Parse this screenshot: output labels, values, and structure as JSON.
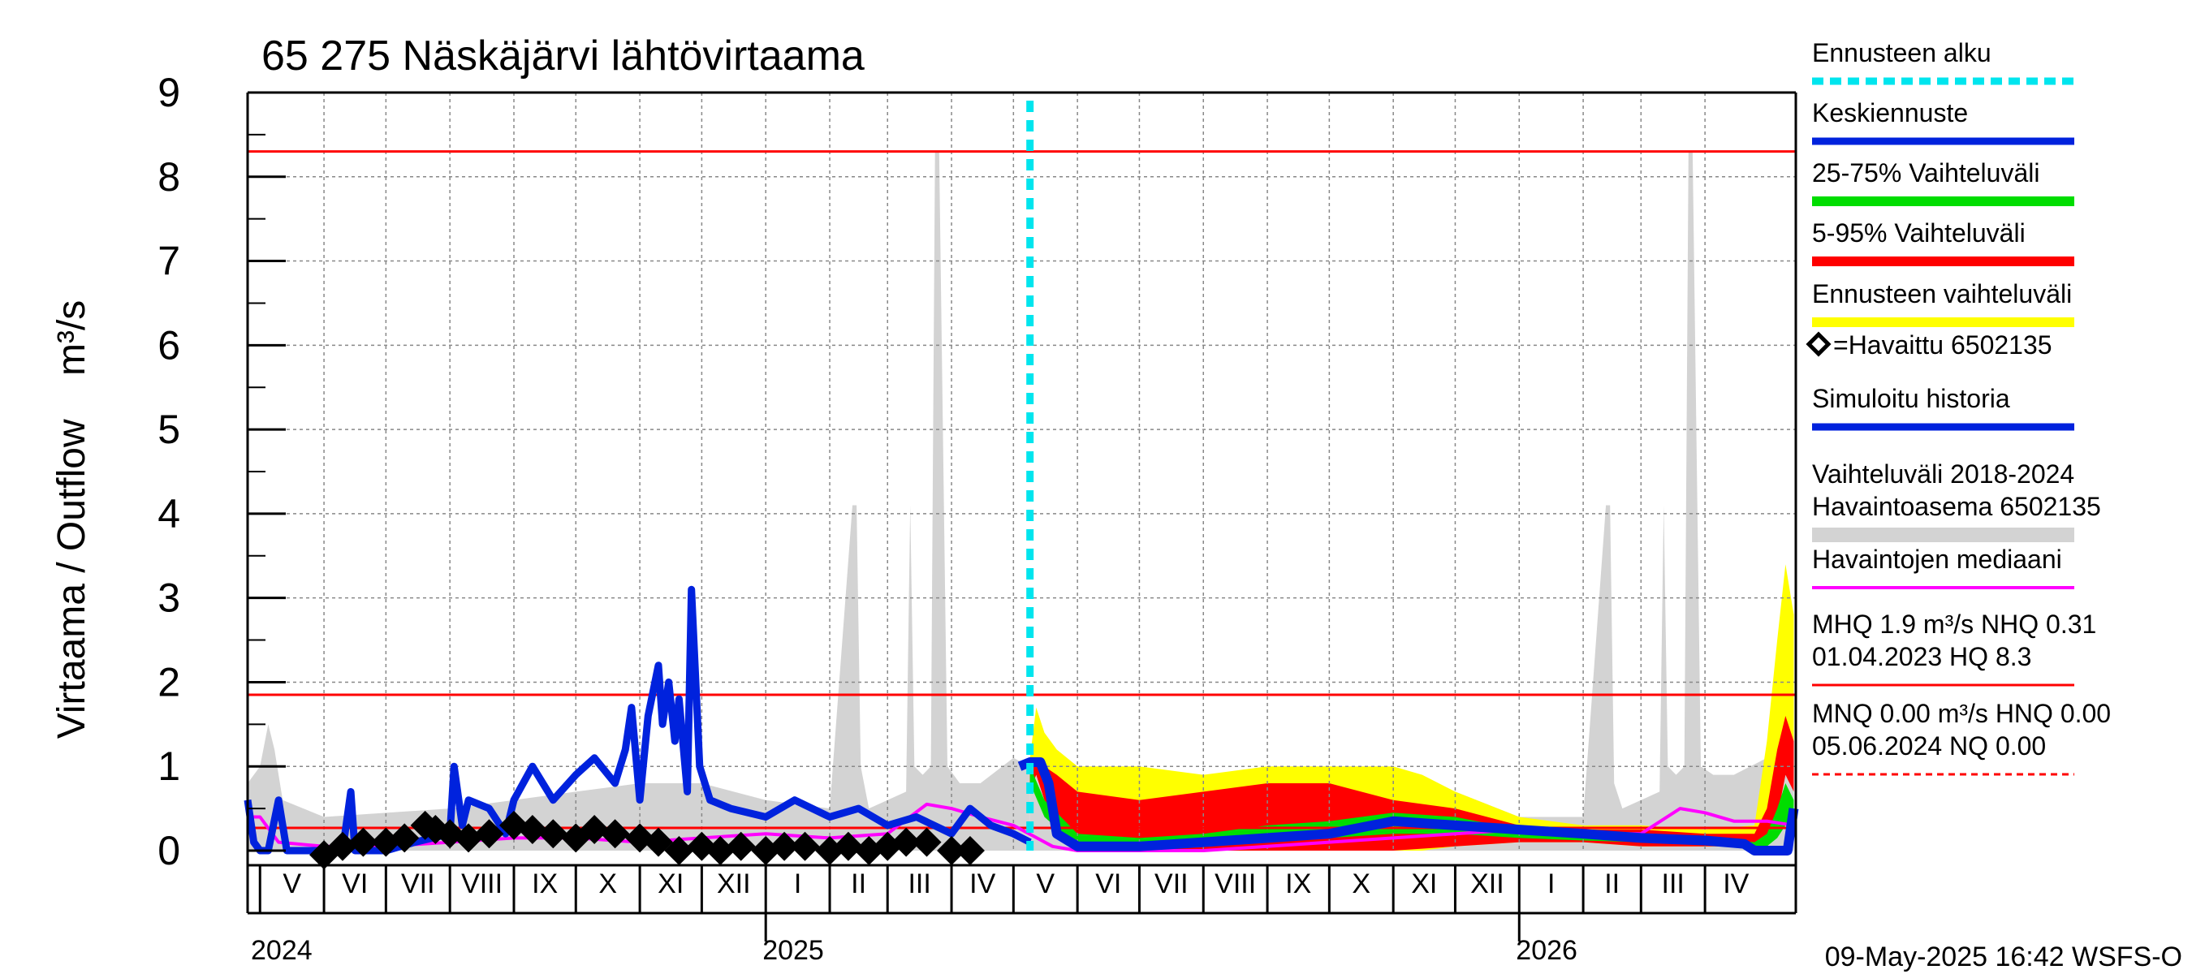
{
  "chart_data": {
    "type": "line",
    "title": "65 275 Näskäjärvi lähtövirtaama",
    "ylabel": "Virtaama / Outflow    m³/s",
    "ylim": [
      0,
      9
    ],
    "yticks": [
      0,
      1,
      2,
      3,
      4,
      5,
      6,
      7,
      8,
      9
    ],
    "xlim": [
      "2024-04-25",
      "2026-05-15"
    ],
    "grid": true,
    "legend_position": "right",
    "timestamp": "09-May-2025 16:42 WSFS-O",
    "forecast_start": "2025-05-09",
    "months": [
      {
        "label": "V",
        "start": "2024-05-01",
        "end": "2024-06-01"
      },
      {
        "label": "VI",
        "start": "2024-06-01",
        "end": "2024-07-01"
      },
      {
        "label": "VII",
        "start": "2024-07-01",
        "end": "2024-08-01"
      },
      {
        "label": "VIII",
        "start": "2024-08-01",
        "end": "2024-09-01"
      },
      {
        "label": "IX",
        "start": "2024-09-01",
        "end": "2024-10-01"
      },
      {
        "label": "X",
        "start": "2024-10-01",
        "end": "2024-11-01"
      },
      {
        "label": "XI",
        "start": "2024-11-01",
        "end": "2024-12-01"
      },
      {
        "label": "XII",
        "start": "2024-12-01",
        "end": "2025-01-01"
      },
      {
        "label": "I",
        "start": "2025-01-01",
        "end": "2025-02-01"
      },
      {
        "label": "II",
        "start": "2025-02-01",
        "end": "2025-03-01"
      },
      {
        "label": "III",
        "start": "2025-03-01",
        "end": "2025-04-01"
      },
      {
        "label": "IV",
        "start": "2025-04-01",
        "end": "2025-05-01"
      },
      {
        "label": "V",
        "start": "2025-05-01",
        "end": "2025-06-01"
      },
      {
        "label": "VI",
        "start": "2025-06-01",
        "end": "2025-07-01"
      },
      {
        "label": "VII",
        "start": "2025-07-01",
        "end": "2025-08-01"
      },
      {
        "label": "VIII",
        "start": "2025-08-01",
        "end": "2025-09-01"
      },
      {
        "label": "IX",
        "start": "2025-09-01",
        "end": "2025-10-01"
      },
      {
        "label": "X",
        "start": "2025-10-01",
        "end": "2025-11-01"
      },
      {
        "label": "XI",
        "start": "2025-11-01",
        "end": "2025-12-01"
      },
      {
        "label": "XII",
        "start": "2025-12-01",
        "end": "2026-01-01"
      },
      {
        "label": "I",
        "start": "2026-01-01",
        "end": "2026-02-01"
      },
      {
        "label": "II",
        "start": "2026-02-01",
        "end": "2026-03-01"
      },
      {
        "label": "III",
        "start": "2026-03-01",
        "end": "2026-04-01"
      },
      {
        "label": "IV",
        "start": "2026-04-01",
        "end": "2026-05-01"
      }
    ],
    "years": [
      {
        "label": "2024",
        "date": "2024-04-25"
      },
      {
        "label": "2025",
        "date": "2025-01-01"
      },
      {
        "label": "2026",
        "date": "2026-01-01"
      }
    ],
    "reference_lines": [
      {
        "name": "HQ",
        "value": 8.3,
        "color": "#ff0000",
        "style": "solid"
      },
      {
        "name": "MHQ",
        "value": 1.85,
        "color": "#ff0000",
        "style": "solid"
      },
      {
        "name": "MQ",
        "value": 0.27,
        "color": "#ff0000",
        "style": "solid"
      }
    ],
    "legend": [
      {
        "label": "Ennusteen alku",
        "color": "#00e5ee",
        "style": "dashed",
        "width": 9
      },
      {
        "label": "Keskiennuste",
        "color": "#0022dd",
        "style": "solid",
        "width": 9
      },
      {
        "label": "25-75% Vaihteluväli",
        "color": "#00dd00",
        "style": "solid",
        "width": 12
      },
      {
        "label": "5-95% Vaihteluväli",
        "color": "#ff0000",
        "style": "solid",
        "width": 12
      },
      {
        "label": "Ennusteen vaihteluväli",
        "color": "#ffff00",
        "style": "solid",
        "width": 12
      },
      {
        "label": "=Havaittu 6502135",
        "color": "#000000",
        "style": "marker",
        "width": 0
      },
      {
        "label": "Simuloitu historia",
        "color": "#0022dd",
        "style": "solid",
        "width": 9
      },
      {
        "label": "Vaihteluväli 2018-2024\n Havaintoasema 6502135",
        "color": "#d3d3d3",
        "style": "solid",
        "width": 18
      },
      {
        "label": "Havaintojen mediaani",
        "color": "#ff00ff",
        "style": "solid",
        "width": 4
      },
      {
        "label": "MHQ  1.9 m³/s NHQ 0.31\n01.04.2023 HQ  8.3",
        "color": "#ff0000",
        "style": "solid",
        "width": 3
      },
      {
        "label": "MNQ 0.00 m³/s HNQ 0.00\n05.06.2024 NQ 0.00",
        "color": "#ff0000",
        "style": "dashed",
        "width": 3
      }
    ],
    "series": [
      {
        "name": "Vaihteluväli 2018-2024 Havaintoasema 6502135",
        "kind": "band",
        "color": "#d3d3d3",
        "x": [
          "2024-04-25",
          "2024-05-01",
          "2024-05-05",
          "2024-05-08",
          "2024-05-12",
          "2024-06-01",
          "2024-08-01",
          "2024-09-01",
          "2024-10-01",
          "2024-11-01",
          "2024-12-01",
          "2025-01-01",
          "2025-02-01",
          "2025-02-12",
          "2025-02-14",
          "2025-02-16",
          "2025-02-20",
          "2025-03-01",
          "2025-03-10",
          "2025-03-12",
          "2025-03-14",
          "2025-03-18",
          "2025-03-22",
          "2025-03-24",
          "2025-03-26",
          "2025-03-30",
          "2025-04-05",
          "2025-04-15",
          "2025-05-01",
          "2025-05-09"
        ],
        "lower": [
          0,
          0,
          0,
          0,
          0,
          0,
          0,
          0,
          0,
          0,
          0,
          0,
          0,
          0,
          0,
          0,
          0,
          0,
          0,
          0,
          0,
          0,
          0,
          0,
          0,
          0,
          0,
          0,
          0,
          0
        ],
        "upper": [
          0.8,
          1.0,
          1.5,
          1.2,
          0.6,
          0.4,
          0.5,
          0.6,
          0.7,
          0.8,
          0.8,
          0.6,
          0.5,
          4.1,
          4.1,
          1.0,
          0.5,
          0.6,
          0.7,
          4.1,
          1.0,
          0.9,
          1.0,
          8.3,
          8.3,
          1.0,
          0.8,
          0.8,
          1.1,
          1.0
        ]
      },
      {
        "name": "Vaihteluväli 2018-2024 (jatko)",
        "kind": "band",
        "color": "#d3d3d3",
        "x": [
          "2025-05-09",
          "2025-06-01",
          "2025-08-01",
          "2025-10-01",
          "2025-12-01",
          "2026-01-01",
          "2026-02-01",
          "2026-02-12",
          "2026-02-14",
          "2026-02-16",
          "2026-02-20",
          "2026-03-01",
          "2026-03-10",
          "2026-03-12",
          "2026-03-14",
          "2026-03-18",
          "2026-03-22",
          "2026-03-24",
          "2026-03-26",
          "2026-03-30",
          "2026-04-05",
          "2026-04-15",
          "2026-05-01",
          "2026-05-14"
        ],
        "lower": [
          0,
          0,
          0,
          0,
          0,
          0,
          0,
          0,
          0,
          0,
          0,
          0,
          0,
          0,
          0,
          0,
          0,
          0,
          0,
          0,
          0,
          0,
          0,
          0
        ],
        "upper": [
          1.0,
          0.6,
          0.5,
          0.6,
          0.7,
          0.4,
          0.4,
          4.1,
          4.1,
          0.8,
          0.5,
          0.6,
          0.7,
          4.1,
          1.0,
          0.9,
          1.0,
          8.3,
          8.3,
          1.0,
          0.9,
          0.9,
          1.1,
          1.0
        ]
      },
      {
        "name": "Ennusteen vaihteluväli",
        "kind": "band",
        "color": "#ffff00",
        "x": [
          "2025-05-09",
          "2025-05-12",
          "2025-05-16",
          "2025-05-22",
          "2025-06-01",
          "2025-07-01",
          "2025-08-01",
          "2025-09-01",
          "2025-10-01",
          "2025-11-01",
          "2025-11-15",
          "2025-12-01",
          "2026-01-01",
          "2026-02-01",
          "2026-03-01",
          "2026-04-01",
          "2026-04-25",
          "2026-05-01",
          "2026-05-06",
          "2026-05-10",
          "2026-05-14"
        ],
        "lower": [
          0.7,
          0.9,
          0.7,
          0.3,
          0.1,
          0.0,
          0.0,
          0.0,
          0.0,
          0.0,
          0.0,
          0.05,
          0.1,
          0.1,
          0.05,
          0.05,
          0.05,
          0.1,
          0.5,
          1.3,
          1.0
        ],
        "upper": [
          1.1,
          1.7,
          1.4,
          1.2,
          1.0,
          1.0,
          0.9,
          1.0,
          1.0,
          1.0,
          0.9,
          0.7,
          0.4,
          0.3,
          0.3,
          0.25,
          0.3,
          1.3,
          2.5,
          3.4,
          2.8
        ]
      },
      {
        "name": "5-95% Vaihteluväli",
        "kind": "band",
        "color": "#ff0000",
        "x": [
          "2025-05-09",
          "2025-05-12",
          "2025-05-16",
          "2025-05-22",
          "2025-06-01",
          "2025-07-01",
          "2025-08-01",
          "2025-09-01",
          "2025-10-01",
          "2025-11-01",
          "2025-12-01",
          "2026-01-01",
          "2026-02-01",
          "2026-03-01",
          "2026-04-01",
          "2026-04-25",
          "2026-05-01",
          "2026-05-06",
          "2026-05-10",
          "2026-05-14"
        ],
        "lower": [
          0.7,
          0.9,
          0.6,
          0.3,
          0.1,
          0.0,
          0.0,
          0.0,
          0.0,
          0.0,
          0.05,
          0.1,
          0.1,
          0.05,
          0.05,
          0.05,
          0.1,
          0.4,
          0.9,
          0.7
        ],
        "upper": [
          1.0,
          1.0,
          1.0,
          0.9,
          0.7,
          0.6,
          0.7,
          0.8,
          0.8,
          0.6,
          0.5,
          0.3,
          0.25,
          0.25,
          0.2,
          0.2,
          0.5,
          1.2,
          1.6,
          1.3
        ]
      },
      {
        "name": "25-75% Vaihteluväli",
        "kind": "band",
        "color": "#00dd00",
        "x": [
          "2025-05-09",
          "2025-05-16",
          "2025-06-01",
          "2025-07-01",
          "2025-08-01",
          "2025-09-01",
          "2025-10-01",
          "2025-11-01",
          "2025-12-01",
          "2026-01-01",
          "2026-02-01",
          "2026-03-01",
          "2026-04-01",
          "2026-04-25",
          "2026-05-01",
          "2026-05-06",
          "2026-05-10",
          "2026-05-14"
        ],
        "lower": [
          0.8,
          0.4,
          0.05,
          0.05,
          0.05,
          0.1,
          0.15,
          0.2,
          0.2,
          0.15,
          0.12,
          0.1,
          0.08,
          0.05,
          0.05,
          0.15,
          0.3,
          0.2
        ],
        "upper": [
          1.0,
          0.6,
          0.2,
          0.15,
          0.2,
          0.3,
          0.35,
          0.45,
          0.4,
          0.25,
          0.2,
          0.18,
          0.15,
          0.1,
          0.2,
          0.5,
          0.8,
          0.6
        ]
      },
      {
        "name": "Havaintojen mediaani",
        "kind": "line",
        "color": "#ff00ff",
        "width": 4,
        "x": [
          "2024-04-25",
          "2024-05-01",
          "2024-05-10",
          "2024-06-01",
          "2024-07-01",
          "2024-08-01",
          "2024-09-01",
          "2024-10-01",
          "2024-11-01",
          "2024-12-01",
          "2025-01-01",
          "2025-02-01",
          "2025-03-01",
          "2025-03-20",
          "2025-04-01",
          "2025-04-15",
          "2025-05-01",
          "2025-05-20",
          "2025-06-01",
          "2025-07-01",
          "2025-08-01",
          "2025-09-01",
          "2025-10-01",
          "2025-11-01",
          "2025-12-01",
          "2026-01-01",
          "2026-02-01",
          "2026-03-01",
          "2026-03-20",
          "2026-04-01",
          "2026-04-15",
          "2026-05-01",
          "2026-05-14"
        ],
        "y": [
          0.4,
          0.4,
          0.1,
          0.05,
          0.05,
          0.1,
          0.15,
          0.15,
          0.1,
          0.15,
          0.2,
          0.15,
          0.2,
          0.55,
          0.5,
          0.4,
          0.3,
          0.05,
          0.0,
          0.0,
          0.0,
          0.05,
          0.1,
          0.15,
          0.2,
          0.25,
          0.2,
          0.2,
          0.5,
          0.45,
          0.35,
          0.35,
          0.3
        ]
      },
      {
        "name": "Simuloitu historia",
        "kind": "line",
        "color": "#0022dd",
        "width": 9,
        "x": [
          "2024-04-25",
          "2024-04-28",
          "2024-05-01",
          "2024-05-05",
          "2024-05-10",
          "2024-05-14",
          "2024-05-18",
          "2024-05-22",
          "2024-05-26",
          "2024-06-01",
          "2024-06-10",
          "2024-06-14",
          "2024-06-16",
          "2024-06-20",
          "2024-07-01",
          "2024-07-15",
          "2024-08-01",
          "2024-08-03",
          "2024-08-07",
          "2024-08-10",
          "2024-08-20",
          "2024-08-28",
          "2024-09-01",
          "2024-09-10",
          "2024-09-20",
          "2024-10-01",
          "2024-10-10",
          "2024-10-20",
          "2024-10-25",
          "2024-10-28",
          "2024-11-01",
          "2024-11-05",
          "2024-11-10",
          "2024-11-12",
          "2024-11-15",
          "2024-11-18",
          "2024-11-20",
          "2024-11-24",
          "2024-11-26",
          "2024-11-30",
          "2024-12-05",
          "2024-12-15",
          "2025-01-01",
          "2025-01-15",
          "2025-02-01",
          "2025-02-15",
          "2025-03-01",
          "2025-03-15",
          "2025-04-01",
          "2025-04-10",
          "2025-04-20",
          "2025-05-01",
          "2025-05-09"
        ],
        "y": [
          0.6,
          0.1,
          0.0,
          0.0,
          0.6,
          0.0,
          0.0,
          0.0,
          0.0,
          0.0,
          0.0,
          0.7,
          0.0,
          0.0,
          0.0,
          0.1,
          0.2,
          1.0,
          0.3,
          0.6,
          0.5,
          0.2,
          0.6,
          1.0,
          0.6,
          0.9,
          1.1,
          0.8,
          1.2,
          1.7,
          0.6,
          1.6,
          2.2,
          1.5,
          2.0,
          1.3,
          1.8,
          0.7,
          3.1,
          1.0,
          0.6,
          0.5,
          0.4,
          0.6,
          0.4,
          0.5,
          0.3,
          0.4,
          0.2,
          0.5,
          0.3,
          0.2,
          0.1
        ]
      },
      {
        "name": "Havaittu 6502135",
        "kind": "markers",
        "color": "#000000",
        "x": [
          "2024-06-01",
          "2024-06-10",
          "2024-06-20",
          "2024-07-01",
          "2024-07-10",
          "2024-07-20",
          "2024-07-25",
          "2024-08-01",
          "2024-08-10",
          "2024-08-20",
          "2024-09-01",
          "2024-09-10",
          "2024-09-20",
          "2024-10-01",
          "2024-10-10",
          "2024-10-20",
          "2024-11-01",
          "2024-11-10",
          "2024-11-20",
          "2024-12-01",
          "2024-12-10",
          "2024-12-20",
          "2025-01-01",
          "2025-01-10",
          "2025-01-20",
          "2025-02-01",
          "2025-02-10",
          "2025-02-20",
          "2025-03-01",
          "2025-03-10",
          "2025-03-20",
          "2025-04-01",
          "2025-04-10"
        ],
        "y": [
          -0.05,
          0.05,
          0.1,
          0.1,
          0.15,
          0.3,
          0.25,
          0.2,
          0.15,
          0.2,
          0.3,
          0.25,
          0.2,
          0.15,
          0.25,
          0.2,
          0.15,
          0.1,
          0.0,
          0.05,
          0.0,
          0.05,
          0.0,
          0.05,
          0.05,
          0.0,
          0.05,
          0.0,
          0.05,
          0.1,
          0.1,
          0.0,
          0.0
        ]
      },
      {
        "name": "Keskiennuste",
        "kind": "line",
        "color": "#0022dd",
        "width": 12,
        "x": [
          "2025-05-04",
          "2025-05-09",
          "2025-05-14",
          "2025-05-18",
          "2025-05-22",
          "2025-06-01",
          "2025-06-15",
          "2025-07-01",
          "2025-08-01",
          "2025-09-01",
          "2025-10-01",
          "2025-11-01",
          "2025-12-01",
          "2026-01-01",
          "2026-02-01",
          "2026-03-01",
          "2026-04-01",
          "2026-04-20",
          "2026-04-25",
          "2026-05-08",
          "2026-05-11",
          "2026-05-14"
        ],
        "y": [
          1.0,
          1.05,
          1.05,
          0.8,
          0.2,
          0.05,
          0.05,
          0.05,
          0.1,
          0.15,
          0.2,
          0.35,
          0.3,
          0.25,
          0.2,
          0.15,
          0.12,
          0.08,
          0.0,
          0.0,
          0.0,
          0.5
        ]
      }
    ]
  }
}
